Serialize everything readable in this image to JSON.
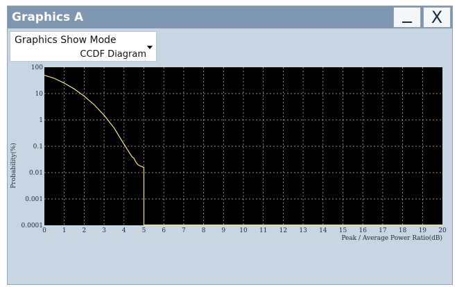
{
  "window": {
    "title": "Graphics A",
    "minimize_label": "_",
    "close_label": "X"
  },
  "mode_select": {
    "label": "Graphics Show Mode",
    "value": "CCDF Diagram"
  },
  "colors": {
    "title_bar": "#7f96b1",
    "panel": "#c8d6e3",
    "plot_bg": "#000000",
    "grid": "#c8c8a0",
    "curve": "#f0e68c"
  },
  "chart_data": {
    "type": "line",
    "title": "",
    "xlabel": "Peak / Average Power Ratio(dB)",
    "ylabel": "Probability(%)",
    "xlim": [
      0,
      20
    ],
    "ylim": [
      0.0001,
      100
    ],
    "y_scale": "log",
    "x_ticks": [
      0,
      1,
      2,
      3,
      4,
      5,
      6,
      7,
      8,
      9,
      10,
      11,
      12,
      13,
      14,
      15,
      16,
      17,
      18,
      19,
      20
    ],
    "y_ticks": [
      {
        "value": 100,
        "label": "100"
      },
      {
        "value": 10,
        "label": "10"
      },
      {
        "value": 1,
        "label": "1"
      },
      {
        "value": 0.1,
        "label": "0.1"
      },
      {
        "value": 0.01,
        "label": "0.01"
      },
      {
        "value": 0.001,
        "label": "0.001"
      },
      {
        "value": 0.0001,
        "label": "0.0001"
      }
    ],
    "grid": true,
    "series": [
      {
        "x": [
          0,
          0.5,
          1,
          1.5,
          2,
          2.5,
          3,
          3.5,
          4,
          4.2,
          4.4,
          4.5,
          4.6,
          4.7,
          4.8,
          4.9,
          4.95,
          5.0,
          5.0
        ],
        "y": [
          50,
          38,
          25,
          15,
          8,
          3.8,
          1.5,
          0.5,
          0.12,
          0.07,
          0.04,
          0.035,
          0.025,
          0.02,
          0.018,
          0.017,
          0.016,
          0.016,
          0.0001
        ]
      }
    ]
  }
}
